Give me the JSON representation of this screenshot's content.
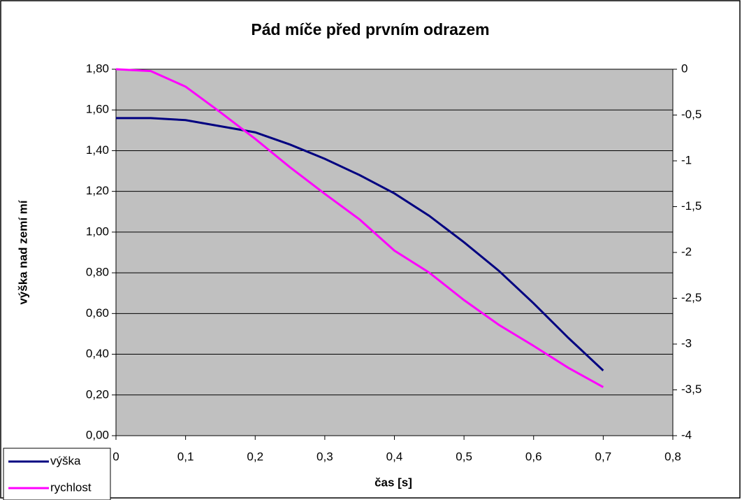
{
  "chart_data": {
    "type": "line",
    "title": "Pád míče před prvním odrazem",
    "x_label": "čas [s]",
    "y_label": "výška nad zemí mí",
    "x": [
      0,
      0.05,
      0.1,
      0.15,
      0.2,
      0.25,
      0.3,
      0.35,
      0.4,
      0.45,
      0.5,
      0.55,
      0.6,
      0.65,
      0.7
    ],
    "series": [
      {
        "name": "výška",
        "color": "#000080",
        "values": [
          1.56,
          1.56,
          1.55,
          1.52,
          1.49,
          1.43,
          1.36,
          1.28,
          1.19,
          1.08,
          0.95,
          0.81,
          0.65,
          0.48,
          0.32
        ]
      },
      {
        "name": "rychlost",
        "color": "#ff00ff",
        "axis": "y2",
        "values": [
          0,
          -0.02,
          -0.19,
          -0.47,
          -0.76,
          -1.07,
          -1.36,
          -1.64,
          -1.98,
          -2.22,
          -2.52,
          -2.79,
          -3.02,
          -3.26,
          -3.47
        ]
      }
    ],
    "xlim": [
      0,
      0.8
    ],
    "xticks": [
      0,
      {
        "value": 0.1,
        "label": "0,1"
      },
      {
        "value": 0.2,
        "label": "0,2"
      },
      {
        "value": 0.3,
        "label": "0,3"
      },
      {
        "value": 0.4,
        "label": "0,4"
      },
      {
        "value": 0.5,
        "label": "0,5"
      },
      {
        "value": 0.6,
        "label": "0,6"
      },
      {
        "value": 0.7,
        "label": "0,7"
      },
      {
        "value": 0.8,
        "label": "0,8"
      }
    ],
    "ylim": [
      0,
      1.8
    ],
    "yticks": [
      {
        "value": 0,
        "label": "0,00"
      },
      {
        "value": 0.2,
        "label": "0,20"
      },
      {
        "value": 0.4,
        "label": "0,40"
      },
      {
        "value": 0.6,
        "label": "0,60"
      },
      {
        "value": 0.8,
        "label": "0,80"
      },
      {
        "value": 1,
        "label": "1,00"
      },
      {
        "value": 1.2,
        "label": "1,20"
      },
      {
        "value": 1.4,
        "label": "1,40"
      },
      {
        "value": 1.6,
        "label": "1,60"
      },
      {
        "value": 1.8,
        "label": "1,80"
      }
    ],
    "y2lim": [
      -4,
      0
    ],
    "y2ticks": [
      -4,
      {
        "value": -3.5,
        "label": "-3,5"
      },
      -3,
      {
        "value": -2.5,
        "label": "-2,5"
      },
      -2,
      {
        "value": -1.5,
        "label": "-1,5"
      },
      -1,
      {
        "value": -0.5,
        "label": "-0,5"
      },
      0
    ],
    "grid": true,
    "legend": "lower left"
  }
}
